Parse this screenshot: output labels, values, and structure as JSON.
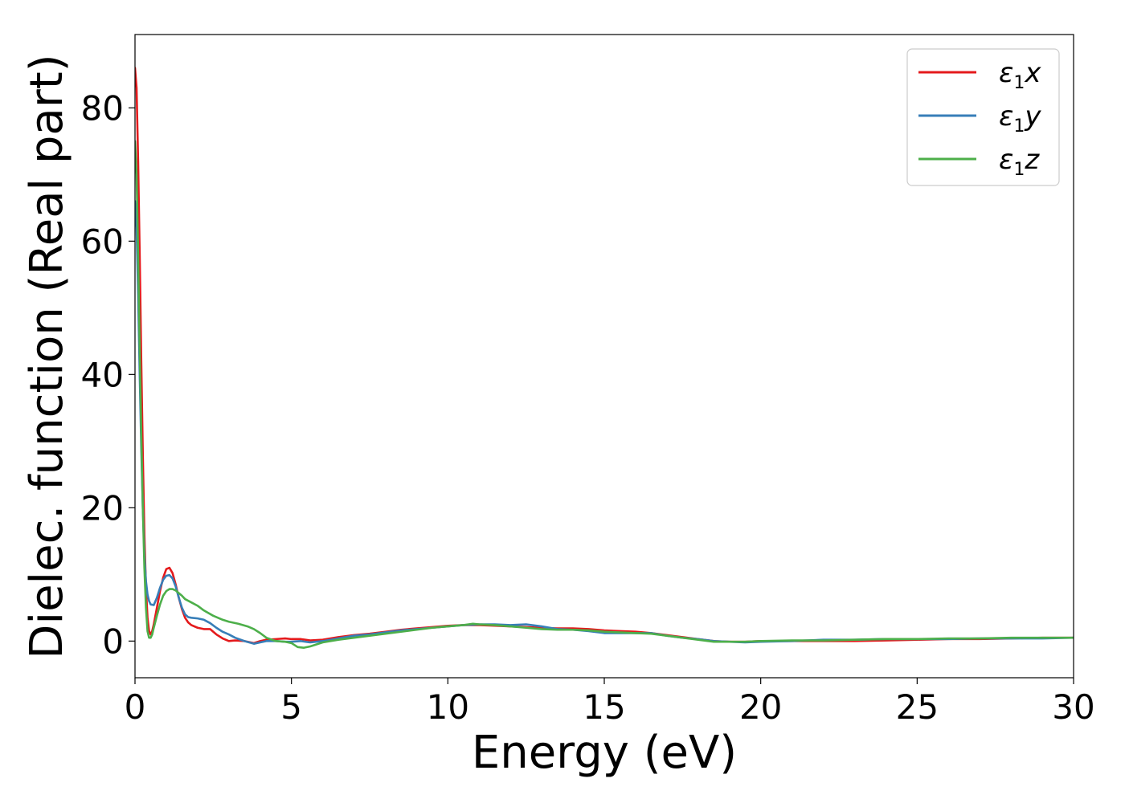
{
  "chart_data": {
    "type": "line",
    "xlabel": "Energy (eV)",
    "ylabel": "Dielec. function (Real part)",
    "xlim": [
      0,
      30
    ],
    "ylim": [
      -5.5,
      91
    ],
    "xticks": [
      0,
      5,
      10,
      15,
      20,
      25,
      30
    ],
    "yticks": [
      0,
      20,
      40,
      60,
      80
    ],
    "grid": false,
    "legend_position": "top-right",
    "series": [
      {
        "name": "ε1x",
        "legend_base": "ε",
        "legend_sub": "1",
        "legend_axis": "x",
        "color": "#e41a1c",
        "x": [
          0,
          0.05,
          0.1,
          0.15,
          0.2,
          0.25,
          0.3,
          0.35,
          0.4,
          0.45,
          0.5,
          0.55,
          0.6,
          0.7,
          0.8,
          0.9,
          1.0,
          1.1,
          1.2,
          1.3,
          1.4,
          1.5,
          1.6,
          1.7,
          1.8,
          2.0,
          2.2,
          2.4,
          2.6,
          2.8,
          3.0,
          3.2,
          3.5,
          3.8,
          4.0,
          4.2,
          4.5,
          4.8,
          5.0,
          5.3,
          5.6,
          6.0,
          6.5,
          7.0,
          7.5,
          8.0,
          8.5,
          9.0,
          9.5,
          10.0,
          10.5,
          11.0,
          11.5,
          12.0,
          12.5,
          13.0,
          13.5,
          14.0,
          14.5,
          15.0,
          15.5,
          16.0,
          16.5,
          17.0,
          17.5,
          18.0,
          18.5,
          19.0,
          19.5,
          20.0,
          21.0,
          22.0,
          23.0,
          24.0,
          25.0,
          26.0,
          27.0,
          28.0,
          29.0,
          30.0
        ],
        "y": [
          86,
          83,
          72,
          58,
          42,
          28,
          16,
          8,
          3.5,
          1.5,
          1.0,
          1.5,
          2.5,
          5.0,
          7.5,
          9.5,
          10.8,
          11.0,
          10.2,
          8.5,
          6.5,
          4.8,
          3.5,
          2.8,
          2.4,
          2.0,
          1.8,
          1.8,
          1.0,
          0.4,
          0.0,
          0.1,
          0.0,
          -0.3,
          0.0,
          0.2,
          0.3,
          0.4,
          0.3,
          0.3,
          0.1,
          0.2,
          0.6,
          0.9,
          1.1,
          1.4,
          1.7,
          1.9,
          2.1,
          2.3,
          2.4,
          2.4,
          2.3,
          2.2,
          2.1,
          2.0,
          1.9,
          1.9,
          1.8,
          1.6,
          1.5,
          1.4,
          1.2,
          0.9,
          0.6,
          0.3,
          0.0,
          -0.1,
          -0.1,
          0.0,
          0.0,
          0.0,
          0.0,
          0.1,
          0.2,
          0.3,
          0.3,
          0.4,
          0.5,
          0.5
        ]
      },
      {
        "name": "ε1y",
        "legend_base": "ε",
        "legend_sub": "1",
        "legend_axis": "y",
        "color": "#377eb8",
        "x": [
          0,
          0.05,
          0.1,
          0.15,
          0.2,
          0.25,
          0.3,
          0.35,
          0.4,
          0.45,
          0.5,
          0.6,
          0.7,
          0.8,
          0.9,
          1.0,
          1.1,
          1.2,
          1.3,
          1.4,
          1.5,
          1.6,
          1.7,
          1.8,
          2.0,
          2.2,
          2.4,
          2.6,
          2.8,
          3.0,
          3.2,
          3.5,
          3.8,
          4.0,
          4.2,
          4.5,
          4.8,
          5.0,
          5.3,
          5.6,
          6.0,
          6.5,
          7.0,
          7.5,
          8.0,
          8.5,
          9.0,
          9.5,
          10.0,
          10.5,
          11.0,
          11.5,
          12.0,
          12.5,
          13.0,
          13.5,
          14.0,
          14.5,
          15.0,
          15.5,
          16.0,
          16.5,
          17.0,
          17.5,
          18.0,
          18.5,
          19.0,
          19.5,
          20.0,
          21.0,
          22.0,
          23.0,
          24.0,
          25.0,
          26.0,
          27.0,
          28.0,
          29.0,
          30.0
        ],
        "y": [
          66,
          62,
          52,
          40,
          29,
          20,
          13,
          9,
          7,
          6,
          5.5,
          5.4,
          6.5,
          8.0,
          9.2,
          9.8,
          9.9,
          9.4,
          8.2,
          6.5,
          5.0,
          4.0,
          3.6,
          3.5,
          3.4,
          3.2,
          2.7,
          2.0,
          1.4,
          1.0,
          0.5,
          0.0,
          -0.4,
          -0.2,
          0.0,
          0.0,
          -0.1,
          -0.1,
          0.0,
          -0.2,
          0.0,
          0.4,
          0.8,
          1.0,
          1.3,
          1.6,
          1.8,
          2.0,
          2.2,
          2.4,
          2.5,
          2.5,
          2.4,
          2.5,
          2.2,
          1.8,
          1.7,
          1.5,
          1.2,
          1.2,
          1.2,
          1.2,
          0.8,
          0.5,
          0.3,
          0.0,
          -0.1,
          -0.2,
          -0.1,
          0.0,
          0.2,
          0.2,
          0.3,
          0.3,
          0.3,
          0.4,
          0.4,
          0.4,
          0.5
        ]
      },
      {
        "name": "ε1z",
        "legend_base": "ε",
        "legend_sub": "1",
        "legend_axis": "z",
        "color": "#4daf4a",
        "x": [
          0,
          0.05,
          0.1,
          0.15,
          0.2,
          0.25,
          0.3,
          0.35,
          0.4,
          0.45,
          0.5,
          0.55,
          0.6,
          0.7,
          0.8,
          0.9,
          1.0,
          1.1,
          1.2,
          1.3,
          1.4,
          1.5,
          1.6,
          1.8,
          2.0,
          2.2,
          2.5,
          2.8,
          3.0,
          3.3,
          3.6,
          3.8,
          4.0,
          4.2,
          4.5,
          4.8,
          5.0,
          5.2,
          5.4,
          5.6,
          6.0,
          6.5,
          7.0,
          7.5,
          8.0,
          8.5,
          9.0,
          9.5,
          10.0,
          10.5,
          10.8,
          11.0,
          11.5,
          12.0,
          12.5,
          13.0,
          13.5,
          14.0,
          14.5,
          15.0,
          15.5,
          16.0,
          16.5,
          17.0,
          17.5,
          18.0,
          18.5,
          19.0,
          19.5,
          20.0,
          21.0,
          22.0,
          23.0,
          24.0,
          25.0,
          26.0,
          27.0,
          28.0,
          29.0,
          30.0
        ],
        "y": [
          75,
          70,
          58,
          44,
          31,
          20,
          11,
          5,
          1.5,
          0.5,
          0.5,
          1.0,
          2.0,
          3.8,
          5.5,
          6.8,
          7.5,
          7.8,
          7.8,
          7.6,
          7.2,
          6.8,
          6.3,
          5.8,
          5.3,
          4.6,
          3.8,
          3.2,
          2.9,
          2.6,
          2.2,
          1.8,
          1.2,
          0.5,
          0.0,
          -0.1,
          -0.3,
          -0.9,
          -1.0,
          -0.8,
          -0.2,
          0.2,
          0.5,
          0.8,
          1.1,
          1.4,
          1.7,
          2.0,
          2.2,
          2.4,
          2.6,
          2.5,
          2.4,
          2.2,
          2.0,
          1.8,
          1.7,
          1.7,
          1.6,
          1.4,
          1.3,
          1.2,
          1.1,
          0.8,
          0.5,
          0.2,
          -0.1,
          -0.1,
          -0.1,
          0.0,
          0.1,
          0.1,
          0.2,
          0.3,
          0.3,
          0.4,
          0.4,
          0.5,
          0.5,
          0.5
        ]
      }
    ]
  }
}
